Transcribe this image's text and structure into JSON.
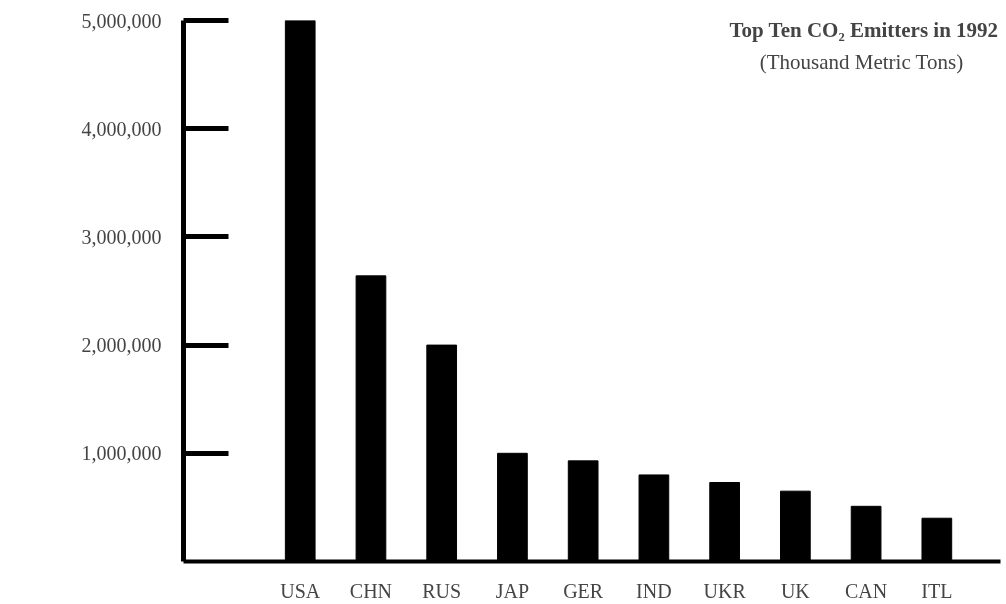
{
  "chart_data": {
    "type": "bar",
    "title": "Top Ten CO₂ Emitters in 1992",
    "subtitle": "(Thousand Metric Tons)",
    "categories": [
      "USA",
      "CHN",
      "RUS",
      "JAP",
      "GER",
      "IND",
      "UKR",
      "UK",
      "CAN",
      "ITL"
    ],
    "values": [
      5000000,
      2640000,
      2000000,
      1000000,
      930000,
      800000,
      730000,
      650000,
      510000,
      400000
    ],
    "color": "#000000",
    "ylim": [
      0,
      5000000
    ],
    "yticks": [
      {
        "value": 1000000,
        "label": "1,000,000"
      },
      {
        "value": 2000000,
        "label": "2,000,000"
      },
      {
        "value": 3000000,
        "label": "3,000,000"
      },
      {
        "value": 4000000,
        "label": "4,000,000"
      },
      {
        "value": 5000000,
        "label": "5,000,000"
      }
    ],
    "grid": false
  }
}
